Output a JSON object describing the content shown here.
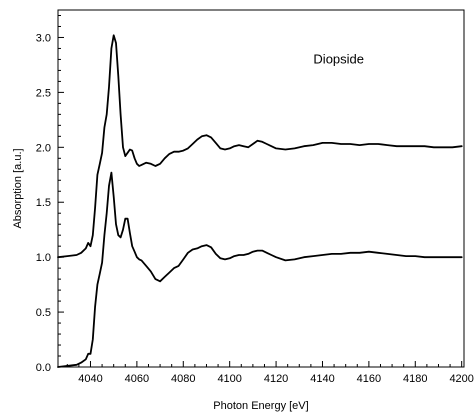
{
  "chart_data": {
    "type": "line",
    "title": "",
    "xlabel": "Photon Energy [eV]",
    "ylabel": "Absorption [a.u.]",
    "xlim": [
      4026,
      4201
    ],
    "ylim": [
      0.0,
      3.25
    ],
    "x_ticks": [
      4040,
      4060,
      4080,
      4100,
      4120,
      4140,
      4160,
      4180,
      4200
    ],
    "y_ticks": [
      "0.0",
      "0.5",
      "1.0",
      "1.5",
      "2.0",
      "2.5",
      "3.0"
    ],
    "grid": false,
    "annotations": [
      {
        "text": "Diopside",
        "x": 4147,
        "y": 2.8
      }
    ],
    "line_color": "#000000",
    "series": [
      {
        "x": [
          4026,
          4030,
          4034,
          4036,
          4038,
          4039,
          4040,
          4041,
          4042,
          4043,
          4044,
          4045,
          4046,
          4047,
          4048,
          4049,
          4050,
          4051,
          4052,
          4053,
          4054,
          4055,
          4056,
          4057,
          4058,
          4059,
          4060,
          4061,
          4062,
          4064,
          4066,
          4068,
          4070,
          4072,
          4074,
          4076,
          4078,
          4080,
          4082,
          4084,
          4086,
          4088,
          4090,
          4092,
          4094,
          4096,
          4098,
          4100,
          4102,
          4104,
          4106,
          4108,
          4110,
          4112,
          4114,
          4116,
          4118,
          4120,
          4124,
          4128,
          4132,
          4136,
          4140,
          4144,
          4148,
          4152,
          4156,
          4160,
          4164,
          4168,
          4172,
          4176,
          4180,
          4184,
          4188,
          4192,
          4196,
          4200
        ],
        "y": [
          1.0,
          1.01,
          1.02,
          1.04,
          1.08,
          1.13,
          1.1,
          1.2,
          1.45,
          1.75,
          1.85,
          1.95,
          2.18,
          2.3,
          2.55,
          2.9,
          3.02,
          2.95,
          2.65,
          2.3,
          2.0,
          1.92,
          1.95,
          1.98,
          1.97,
          1.9,
          1.85,
          1.83,
          1.84,
          1.86,
          1.85,
          1.83,
          1.85,
          1.9,
          1.94,
          1.96,
          1.96,
          1.97,
          1.99,
          2.03,
          2.07,
          2.1,
          2.11,
          2.09,
          2.04,
          1.99,
          1.98,
          1.99,
          2.01,
          2.02,
          2.01,
          2.0,
          2.03,
          2.06,
          2.05,
          2.03,
          2.01,
          1.99,
          1.98,
          1.99,
          2.01,
          2.02,
          2.04,
          2.04,
          2.03,
          2.03,
          2.02,
          2.03,
          2.03,
          2.02,
          2.01,
          2.01,
          2.01,
          2.01,
          2.0,
          2.0,
          2.0,
          2.01
        ]
      },
      {
        "x": [
          4026,
          4030,
          4034,
          4036,
          4038,
          4039,
          4040,
          4041,
          4042,
          4043,
          4044,
          4045,
          4046,
          4047,
          4048,
          4049,
          4050,
          4051,
          4052,
          4053,
          4054,
          4055,
          4056,
          4057,
          4058,
          4059,
          4060,
          4061,
          4062,
          4064,
          4066,
          4068,
          4070,
          4072,
          4074,
          4076,
          4078,
          4080,
          4082,
          4084,
          4086,
          4088,
          4090,
          4092,
          4094,
          4096,
          4098,
          4100,
          4102,
          4104,
          4106,
          4108,
          4110,
          4112,
          4114,
          4116,
          4118,
          4120,
          4124,
          4128,
          4132,
          4136,
          4140,
          4144,
          4148,
          4152,
          4156,
          4160,
          4164,
          4168,
          4172,
          4176,
          4180,
          4184,
          4188,
          4192,
          4196,
          4200
        ],
        "y": [
          0.0,
          0.01,
          0.02,
          0.04,
          0.07,
          0.12,
          0.12,
          0.25,
          0.55,
          0.75,
          0.85,
          0.95,
          1.2,
          1.4,
          1.65,
          1.77,
          1.55,
          1.3,
          1.2,
          1.18,
          1.25,
          1.35,
          1.35,
          1.22,
          1.1,
          1.05,
          1.0,
          0.98,
          0.97,
          0.92,
          0.87,
          0.8,
          0.78,
          0.82,
          0.86,
          0.9,
          0.92,
          0.98,
          1.04,
          1.07,
          1.08,
          1.1,
          1.11,
          1.09,
          1.03,
          0.99,
          0.98,
          0.99,
          1.01,
          1.02,
          1.02,
          1.03,
          1.05,
          1.06,
          1.06,
          1.04,
          1.02,
          1.0,
          0.97,
          0.98,
          1.0,
          1.01,
          1.02,
          1.03,
          1.03,
          1.04,
          1.04,
          1.05,
          1.04,
          1.03,
          1.02,
          1.01,
          1.01,
          1.0,
          1.0,
          1.0,
          1.0,
          1.0
        ]
      }
    ]
  }
}
